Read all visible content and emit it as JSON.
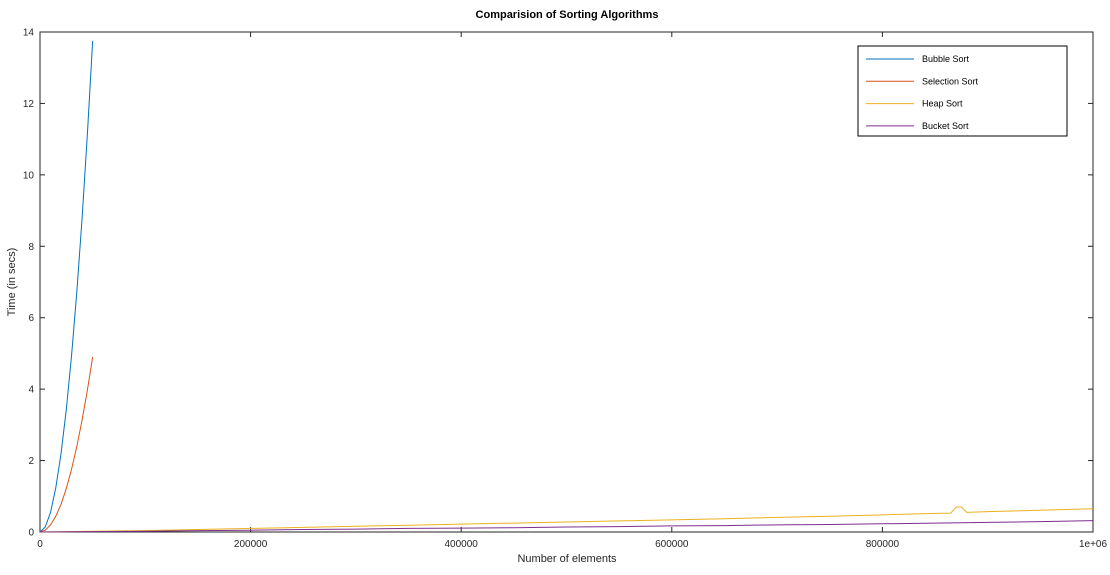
{
  "chart_data": {
    "type": "line",
    "title": "Comparision of Sorting Algorithms",
    "xlabel": "Number of elements",
    "ylabel": "Time (in secs)",
    "xlim": [
      0,
      1000000
    ],
    "ylim": [
      0,
      14
    ],
    "xticks": [
      0,
      200000,
      400000,
      600000,
      800000,
      1000000
    ],
    "xtick_labels": [
      "0",
      "200000",
      "400000",
      "600000",
      "800000",
      "1e+06"
    ],
    "yticks": [
      0,
      2,
      4,
      6,
      8,
      10,
      12,
      14
    ],
    "ytick_labels": [
      "0",
      "2",
      "4",
      "6",
      "8",
      "10",
      "12",
      "14"
    ],
    "grid": false,
    "legend_position": "top-right",
    "series": [
      {
        "name": "Bubble Sort",
        "color": "#0072bd",
        "x": [
          0,
          5000,
          10000,
          15000,
          20000,
          25000,
          30000,
          35000,
          40000,
          45000,
          50000
        ],
        "y": [
          0,
          0.14,
          0.55,
          1.24,
          2.2,
          3.44,
          4.95,
          6.74,
          8.8,
          11.14,
          13.75
        ]
      },
      {
        "name": "Selection Sort",
        "color": "#d95319",
        "x": [
          0,
          5000,
          10000,
          15000,
          20000,
          25000,
          30000,
          35000,
          40000,
          45000,
          50000
        ],
        "y": [
          0,
          0.05,
          0.2,
          0.44,
          0.78,
          1.22,
          1.76,
          2.4,
          3.14,
          3.97,
          4.9
        ]
      },
      {
        "name": "Heap Sort",
        "color": "#edb120",
        "x": [
          0,
          50000,
          100000,
          150000,
          200000,
          250000,
          300000,
          350000,
          400000,
          450000,
          500000,
          550000,
          600000,
          650000,
          700000,
          750000,
          800000,
          850000,
          865000,
          870000,
          875000,
          880000,
          900000,
          950000,
          1000000
        ],
        "y": [
          0,
          0.02,
          0.04,
          0.07,
          0.1,
          0.13,
          0.16,
          0.19,
          0.22,
          0.25,
          0.28,
          0.31,
          0.34,
          0.37,
          0.41,
          0.44,
          0.48,
          0.52,
          0.53,
          0.7,
          0.7,
          0.55,
          0.57,
          0.61,
          0.65
        ]
      },
      {
        "name": "Bucket Sort",
        "color": "#7e2f8e",
        "x": [
          0,
          50000,
          100000,
          150000,
          200000,
          250000,
          300000,
          350000,
          400000,
          450000,
          500000,
          550000,
          600000,
          650000,
          700000,
          750000,
          800000,
          850000,
          900000,
          950000,
          1000000
        ],
        "y": [
          0,
          0.01,
          0.02,
          0.04,
          0.05,
          0.07,
          0.08,
          0.1,
          0.11,
          0.12,
          0.14,
          0.15,
          0.17,
          0.18,
          0.2,
          0.21,
          0.23,
          0.25,
          0.27,
          0.29,
          0.32
        ]
      }
    ]
  }
}
